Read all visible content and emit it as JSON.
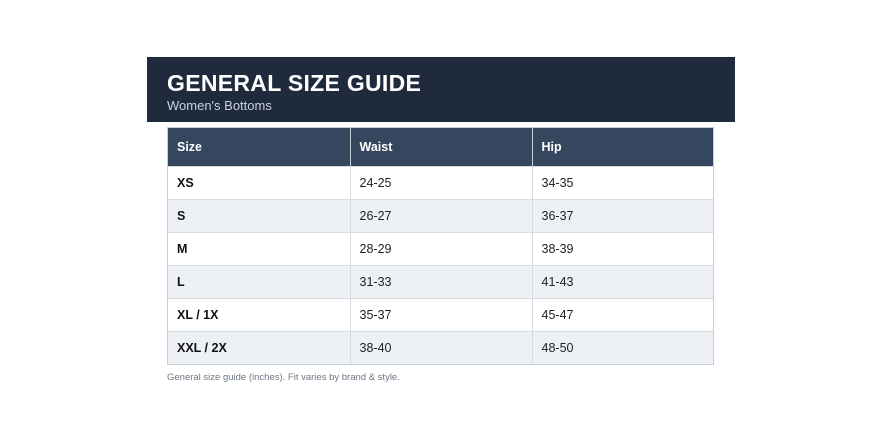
{
  "header": {
    "title": "GENERAL SIZE GUIDE",
    "subtitle": "Women's Bottoms"
  },
  "table": {
    "columns": [
      "Size",
      "Waist",
      "Hip"
    ],
    "rows": [
      {
        "size": "XS",
        "waist": "24-25",
        "hip": "34-35"
      },
      {
        "size": "S",
        "waist": "26-27",
        "hip": "36-37"
      },
      {
        "size": "M",
        "waist": "28-29",
        "hip": "38-39"
      },
      {
        "size": "L",
        "waist": "31-33",
        "hip": "41-43"
      },
      {
        "size": "XL / 1X",
        "waist": "35-37",
        "hip": "45-47"
      },
      {
        "size": "XXL / 2X",
        "waist": "38-40",
        "hip": "48-50"
      }
    ]
  },
  "footnote": "General size guide (inches). Fit varies by brand & style.",
  "colors": {
    "header_bg": "#1f2b3c",
    "table_header_bg": "#34475f",
    "row_alt_bg": "#edf1f6"
  }
}
